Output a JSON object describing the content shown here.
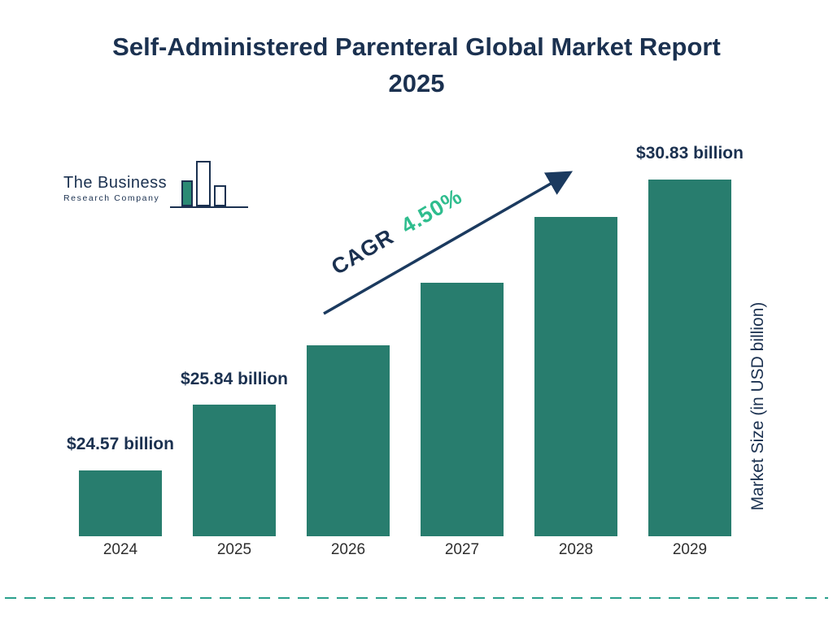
{
  "title": "Self-Administered Parenteral Global Market Report 2025",
  "logo": {
    "name": "The Business",
    "subname": "Research Company"
  },
  "cagr": {
    "label": "CAGR",
    "value": "4.50%"
  },
  "y_axis_label": "Market Size (in USD billion)",
  "colors": {
    "bar": "#287d6e",
    "navy": "#1b3150",
    "green": "#2fbd8e",
    "dashed_line": "#2aa08c"
  },
  "chart_data": {
    "type": "bar",
    "title": "Self-Administered Parenteral Global Market Report 2025",
    "categories": [
      "2024",
      "2025",
      "2026",
      "2027",
      "2028",
      "2029"
    ],
    "values": [
      24.57,
      25.84,
      27.0,
      28.21,
      29.48,
      30.83
    ],
    "value_labels": [
      "$24.57 billion",
      "$25.84 billion",
      "",
      "",
      "",
      "$30.83 billion"
    ],
    "cagr": "4.50%",
    "xlabel": "",
    "ylabel": "Market Size (in USD billion)",
    "ylim": [
      23.3,
      31.0
    ],
    "bar_color": "#287d6e",
    "grid": false,
    "legend": false
  }
}
